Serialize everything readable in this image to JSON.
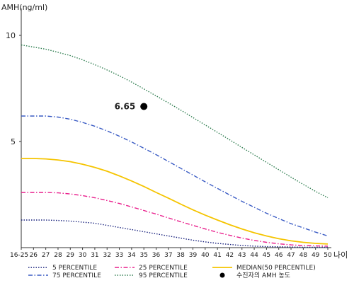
{
  "chart_data": {
    "type": "line",
    "ylabel": "AMH(ng/ml)",
    "xlabel": "나이",
    "categories": [
      "16-25",
      "26",
      "27",
      "28",
      "29",
      "30",
      "31",
      "32",
      "33",
      "34",
      "35",
      "36",
      "37",
      "38",
      "39",
      "40",
      "41",
      "42",
      "43",
      "44",
      "45",
      "46",
      "47",
      "48",
      "49",
      "50"
    ],
    "y_ticks": [
      5,
      10
    ],
    "ylim": [
      0,
      11
    ],
    "series": [
      {
        "name": "5 PERCENTILE",
        "color": "#1a237e",
        "dash": "dotted",
        "values": [
          1.3,
          1.3,
          1.3,
          1.28,
          1.25,
          1.2,
          1.15,
          1.05,
          0.95,
          0.85,
          0.75,
          0.65,
          0.55,
          0.45,
          0.35,
          0.27,
          0.2,
          0.15,
          0.1,
          0.07,
          0.05,
          0.04,
          0.03,
          0.02,
          0.02,
          0.02
        ]
      },
      {
        "name": "25 PERCENTILE",
        "color": "#e91e8c",
        "dash": "dash-dot",
        "values": [
          2.6,
          2.6,
          2.6,
          2.58,
          2.53,
          2.45,
          2.35,
          2.22,
          2.08,
          1.92,
          1.75,
          1.58,
          1.4,
          1.22,
          1.05,
          0.88,
          0.72,
          0.58,
          0.45,
          0.34,
          0.25,
          0.18,
          0.13,
          0.1,
          0.08,
          0.07
        ]
      },
      {
        "name": "MEDIAN(50 PERCENTILE)",
        "color": "#f5c400",
        "dash": "solid",
        "values": [
          4.2,
          4.2,
          4.18,
          4.13,
          4.05,
          3.93,
          3.78,
          3.6,
          3.38,
          3.14,
          2.88,
          2.6,
          2.33,
          2.05,
          1.78,
          1.53,
          1.3,
          1.08,
          0.88,
          0.7,
          0.55,
          0.42,
          0.32,
          0.25,
          0.2,
          0.17
        ]
      },
      {
        "name": "75 PERCENTILE",
        "color": "#3a5bc4",
        "dash": "dash-dot",
        "values": [
          6.2,
          6.2,
          6.2,
          6.15,
          6.05,
          5.9,
          5.72,
          5.5,
          5.25,
          4.98,
          4.68,
          4.38,
          4.06,
          3.74,
          3.42,
          3.1,
          2.79,
          2.48,
          2.18,
          1.9,
          1.62,
          1.37,
          1.13,
          0.93,
          0.73,
          0.55
        ]
      },
      {
        "name": "95 PERCENTILE",
        "color": "#2e7d4f",
        "dash": "dotted",
        "values": [
          9.55,
          9.45,
          9.35,
          9.2,
          9.05,
          8.85,
          8.62,
          8.37,
          8.1,
          7.8,
          7.48,
          7.15,
          6.82,
          6.48,
          6.13,
          5.78,
          5.43,
          5.08,
          4.72,
          4.37,
          4.02,
          3.67,
          3.32,
          2.98,
          2.65,
          2.35
        ]
      }
    ],
    "patient_point": {
      "name": "수진자의 AMH 농도",
      "x": "35",
      "y": 6.65,
      "label": "6.65",
      "color": "#000000"
    },
    "legend_position": "bottom",
    "grid": false
  }
}
